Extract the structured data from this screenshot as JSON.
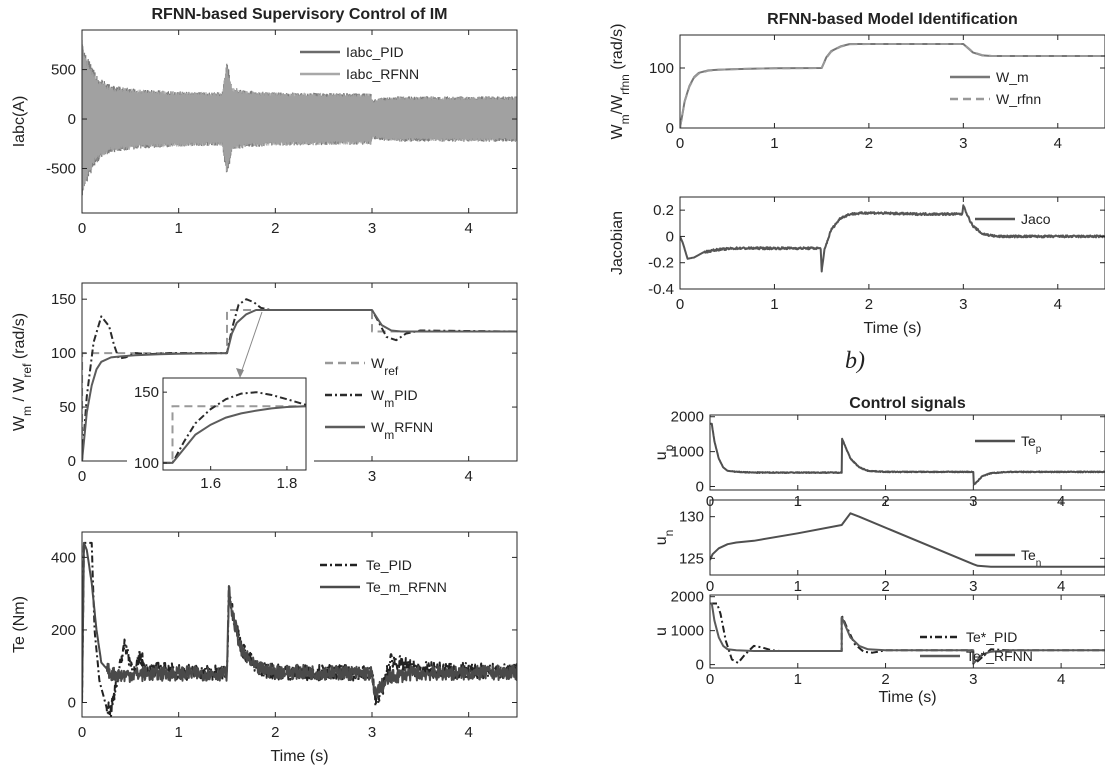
{
  "figure": {
    "left_label": "",
    "right_label": "b)"
  },
  "chart_data": [
    {
      "id": "iabc",
      "type": "line",
      "title": "RFNN-based Supervisory Control of IM",
      "xlabel": "",
      "ylabel": "Iabc(A)",
      "xlim": [
        0,
        4.5
      ],
      "ylim": [
        -950,
        900
      ],
      "xticks": [
        0,
        1,
        2,
        3,
        4
      ],
      "yticks": [
        -500,
        0,
        500
      ],
      "legend": "top-right",
      "series": [
        {
          "name": "Iabc_PID",
          "color": "#6b6b6b",
          "dash": "solid",
          "envelope": {
            "x": [
              0,
              0.05,
              0.15,
              0.3,
              0.6,
              1.0,
              1.45,
              1.5,
              1.55,
              1.7,
              2.0,
              2.9,
              2.99,
              3.0,
              3.1,
              3.3,
              4.5
            ],
            "amp": [
              800,
              650,
              450,
              340,
              300,
              280,
              270,
              600,
              330,
              290,
              270,
              260,
              260,
              200,
              220,
              230,
              230
            ]
          }
        },
        {
          "name": "Iabc_RFNN",
          "color": "#a8a8a8",
          "dash": "solid",
          "envelope": {
            "x": [
              0,
              0.05,
              0.15,
              0.3,
              0.6,
              1.0,
              1.45,
              1.5,
              1.55,
              1.7,
              2.0,
              2.9,
              2.99,
              3.0,
              3.1,
              3.3,
              4.5
            ],
            "amp": [
              780,
              620,
              420,
              330,
              300,
              280,
              270,
              560,
              320,
              285,
              270,
              260,
              260,
              190,
              215,
              225,
              225
            ]
          }
        }
      ]
    },
    {
      "id": "speed",
      "type": "line",
      "title": "",
      "xlabel": "",
      "ylabel": "W_m / W_ref (rad/s)",
      "xlim": [
        0,
        4.5
      ],
      "ylim": [
        0,
        165
      ],
      "xticks": [
        0,
        1,
        2,
        3,
        4
      ],
      "yticks": [
        0,
        50,
        100,
        150
      ],
      "legend": "right",
      "series": [
        {
          "name": "W_ref",
          "legend": {
            "main": "W",
            "sub": "ref"
          },
          "color": "#999999",
          "dash": "8,5",
          "x": [
            0,
            0.001,
            1.5,
            1.5,
            3.0,
            3.0,
            4.5
          ],
          "y": [
            0,
            100,
            100,
            140,
            140,
            120,
            120
          ]
        },
        {
          "name": "W_m PID",
          "legend": {
            "main": "W",
            "sub": "m",
            "rest": "PID"
          },
          "color": "#2b2b2b",
          "dash": "7,3,2,3",
          "x": [
            0,
            0.05,
            0.12,
            0.2,
            0.28,
            0.33,
            0.38,
            0.45,
            0.55,
            0.7,
            0.9,
            1.2,
            1.5,
            1.55,
            1.62,
            1.7,
            1.78,
            1.85,
            1.95,
            2.1,
            2.5,
            3.0,
            3.05,
            3.15,
            3.25,
            3.35,
            3.5,
            4.5
          ],
          "y": [
            0,
            60,
            110,
            134,
            125,
            108,
            95,
            96,
            100,
            99,
            100,
            100,
            100,
            122,
            145,
            150,
            147,
            142,
            140,
            140,
            140,
            140,
            132,
            115,
            112,
            118,
            121,
            120
          ]
        },
        {
          "name": "W_m RFNN",
          "legend": {
            "main": "W",
            "sub": "m",
            "rest": "RFNN"
          },
          "color": "#5c5c5c",
          "dash": "solid",
          "x": [
            0,
            0.05,
            0.1,
            0.15,
            0.2,
            0.3,
            0.4,
            0.55,
            0.8,
            1.0,
            1.5,
            1.55,
            1.6,
            1.7,
            1.8,
            2.0,
            3.0,
            3.05,
            3.1,
            3.2,
            3.3,
            4.5
          ],
          "y": [
            0,
            45,
            70,
            85,
            92,
            96,
            97,
            98,
            99,
            99.5,
            100,
            118,
            128,
            136,
            140,
            140,
            140,
            133,
            126,
            121,
            120,
            120
          ]
        }
      ],
      "inset": {
        "xlim": [
          1.475,
          1.85
        ],
        "ylim": [
          95,
          160
        ],
        "xticks": [
          1.6,
          1.8
        ],
        "yticks": [
          100,
          150
        ],
        "series": [
          {
            "name": "W_ref",
            "x": [
              1.475,
              1.5,
              1.5,
              1.85
            ],
            "y": [
              100,
              100,
              140,
              140
            ]
          },
          {
            "name": "W_m PID",
            "x": [
              1.475,
              1.5,
              1.53,
              1.56,
              1.6,
              1.64,
              1.68,
              1.72,
              1.76,
              1.8,
              1.85
            ],
            "y": [
              100,
              100,
              115,
              128,
              138,
              145,
              149,
              150,
              148,
              145,
              141
            ]
          },
          {
            "name": "W_m RFNN",
            "x": [
              1.475,
              1.5,
              1.53,
              1.56,
              1.6,
              1.64,
              1.68,
              1.72,
              1.76,
              1.8,
              1.85
            ],
            "y": [
              100,
              100,
              110,
              120,
              127,
              132,
              135,
              137,
              138.5,
              139.5,
              140
            ]
          }
        ]
      }
    },
    {
      "id": "torque",
      "type": "line",
      "title": "",
      "xlabel": "Time (s)",
      "ylabel": "Te (Nm)",
      "xlim": [
        0,
        4.5
      ],
      "ylim": [
        -40,
        470
      ],
      "xticks": [
        0,
        1,
        2,
        3,
        4
      ],
      "yticks": [
        0,
        200,
        400
      ],
      "legend": "top-right",
      "series": [
        {
          "name": "Te_PID",
          "color": "#222222",
          "dash": "7,3,2,3",
          "x": [
            0,
            0.02,
            0.05,
            0.1,
            0.13,
            0.18,
            0.25,
            0.3,
            0.35,
            0.4,
            0.45,
            0.5,
            0.55,
            0.6,
            0.65,
            0.7,
            0.8,
            1.0,
            1.5,
            1.52,
            1.55,
            1.65,
            1.8,
            2.0,
            3.0,
            3.03,
            3.1,
            3.2,
            3.3,
            3.5,
            4.5
          ],
          "y": [
            0,
            440,
            440,
            440,
            200,
            60,
            -10,
            -20,
            40,
            120,
            160,
            110,
            80,
            130,
            100,
            85,
            90,
            85,
            80,
            320,
            260,
            150,
            95,
            85,
            80,
            10,
            30,
            120,
            105,
            90,
            85
          ],
          "noise": 22
        },
        {
          "name": "Te_m_RFNN",
          "color": "#4a4a4a",
          "dash": "solid",
          "x": [
            0,
            0.02,
            0.05,
            0.1,
            0.15,
            0.2,
            0.3,
            0.4,
            0.6,
            1.0,
            1.5,
            1.52,
            1.55,
            1.65,
            1.8,
            2.0,
            3.0,
            3.02,
            3.08,
            3.2,
            3.4,
            4.5
          ],
          "y": [
            0,
            440,
            420,
            330,
            200,
            110,
            80,
            75,
            78,
            80,
            80,
            310,
            250,
            140,
            95,
            85,
            80,
            20,
            40,
            70,
            80,
            82
          ],
          "noise": 20
        }
      ]
    },
    {
      "id": "ident_speed",
      "type": "line",
      "title": "RFNN-based Model Identification",
      "xlabel": "",
      "ylabel": "W_m/W_rfnn (rad/s)",
      "xlim": [
        0,
        4.5
      ],
      "ylim": [
        0,
        155
      ],
      "xticks": [
        0,
        1,
        2,
        3,
        4
      ],
      "yticks": [
        0,
        100
      ],
      "legend": "right",
      "series": [
        {
          "name": "W_m",
          "color": "#777777",
          "dash": "solid",
          "x": [
            0,
            0.05,
            0.1,
            0.15,
            0.2,
            0.3,
            0.4,
            0.55,
            0.8,
            1.0,
            1.5,
            1.55,
            1.6,
            1.7,
            1.8,
            2.0,
            3.0,
            3.05,
            3.1,
            3.2,
            3.3,
            4.5
          ],
          "y": [
            0,
            45,
            70,
            85,
            92,
            96,
            97,
            98,
            99,
            99.5,
            100,
            118,
            128,
            136,
            140,
            140,
            140,
            133,
            126,
            121,
            120,
            120
          ]
        },
        {
          "name": "W_rfnn",
          "color": "#999999",
          "dash": "8,5",
          "x": [
            0,
            0.05,
            0.1,
            0.15,
            0.2,
            0.3,
            0.4,
            0.55,
            0.8,
            1.0,
            1.5,
            1.55,
            1.6,
            1.7,
            1.8,
            2.0,
            3.0,
            3.05,
            3.1,
            3.2,
            3.3,
            4.5
          ],
          "y": [
            0,
            44,
            69,
            84,
            91,
            95.5,
            97,
            98,
            99,
            99.5,
            100,
            117,
            127,
            135.5,
            139.5,
            140,
            140,
            133.5,
            126.5,
            121.5,
            120,
            120
          ]
        }
      ]
    },
    {
      "id": "jacobian",
      "type": "line",
      "title": "",
      "xlabel": "Time (s)",
      "ylabel": "Jacobian",
      "xlim": [
        0,
        4.5
      ],
      "ylim": [
        -0.4,
        0.3
      ],
      "xticks": [
        0,
        1,
        2,
        3,
        4
      ],
      "yticks": [
        -0.4,
        -0.2,
        0,
        0.2
      ],
      "legend": "top-right",
      "series": [
        {
          "name": "Jaco",
          "color": "#555555",
          "dash": "solid",
          "x": [
            0,
            0.03,
            0.08,
            0.15,
            0.25,
            0.4,
            0.6,
            1.0,
            1.49,
            1.5,
            1.53,
            1.6,
            1.7,
            1.8,
            2.0,
            2.5,
            2.99,
            3.0,
            3.05,
            3.1,
            3.2,
            3.35,
            3.6,
            4.0,
            4.5
          ],
          "y": [
            0,
            -0.05,
            -0.17,
            -0.16,
            -0.12,
            -0.1,
            -0.09,
            -0.09,
            -0.09,
            -0.27,
            -0.1,
            0.05,
            0.14,
            0.17,
            0.18,
            0.17,
            0.17,
            0.24,
            0.15,
            0.08,
            0.02,
            0.0,
            0.0,
            0.0,
            0.0
          ],
          "noise": 0.008
        }
      ]
    },
    {
      "id": "up",
      "type": "line",
      "title": "Control signals",
      "xlabel": "",
      "ylabel": "u_p",
      "xlim": [
        0,
        4.5
      ],
      "ylim": [
        -100,
        2050
      ],
      "xticks": [
        0,
        1,
        2,
        3,
        4
      ],
      "yticks": [
        0,
        1000,
        2000
      ],
      "legend": "top-right",
      "series": [
        {
          "name": "Te_p",
          "legend": {
            "main": "Te",
            "sub": "p"
          },
          "color": "#4f4f4f",
          "dash": "solid",
          "x": [
            0,
            0.02,
            0.05,
            0.1,
            0.15,
            0.2,
            0.3,
            0.5,
            1.0,
            1.5,
            1.5,
            1.55,
            1.6,
            1.7,
            1.8,
            2.0,
            3.0,
            3.0,
            3.05,
            3.1,
            3.2,
            3.4,
            3.8,
            4.5
          ],
          "y": [
            1800,
            1800,
            1300,
            800,
            550,
            450,
            420,
            400,
            400,
            400,
            1400,
            1100,
            800,
            550,
            450,
            420,
            420,
            40,
            150,
            300,
            380,
            420,
            420,
            420
          ],
          "noise": 12
        }
      ]
    },
    {
      "id": "un",
      "type": "line",
      "title": "",
      "xlabel": "",
      "ylabel": "u_n",
      "xlim": [
        0,
        4.5
      ],
      "ylim": [
        123,
        132
      ],
      "xticks": [
        0,
        1,
        2,
        3,
        4
      ],
      "yticks": [
        125,
        130
      ],
      "legend": "right",
      "series": [
        {
          "name": "Te_n",
          "legend": {
            "main": "Te",
            "sub": "n"
          },
          "color": "#4f4f4f",
          "dash": "solid",
          "x": [
            0,
            0.03,
            0.1,
            0.2,
            0.3,
            0.5,
            1.0,
            1.5,
            1.6,
            1.7,
            3.0,
            3.05,
            3.2,
            4.5
          ],
          "y": [
            124.8,
            125.5,
            126.2,
            126.7,
            126.9,
            127.1,
            128.0,
            129.0,
            130.4,
            130.0,
            124.3,
            124.1,
            124.0,
            124.0
          ]
        }
      ]
    },
    {
      "id": "u",
      "type": "line",
      "title": "",
      "xlabel": "Time (s)",
      "ylabel": "u",
      "xlim": [
        0,
        4.5
      ],
      "ylim": [
        -100,
        2050
      ],
      "xticks": [
        0,
        1,
        2,
        3,
        4
      ],
      "yticks": [
        0,
        1000,
        2000
      ],
      "legend": "right",
      "series": [
        {
          "name": "Te*_PID",
          "color": "#222222",
          "dash": "7,3,2,3",
          "x": [
            0,
            0.08,
            0.12,
            0.18,
            0.25,
            0.32,
            0.4,
            0.5,
            0.6,
            0.7,
            0.8,
            1.0,
            1.5,
            1.5,
            1.55,
            1.65,
            1.75,
            1.85,
            2.0,
            3.0,
            3.0,
            3.05,
            3.2,
            3.4,
            4.5
          ],
          "y": [
            1800,
            1800,
            1500,
            700,
            150,
            50,
            300,
            550,
            500,
            420,
            400,
            400,
            400,
            1450,
            1150,
            600,
            380,
            350,
            420,
            420,
            30,
            100,
            450,
            420,
            420
          ]
        },
        {
          "name": "Te*_RFNN",
          "color": "#5a5a5a",
          "dash": "solid",
          "x": [
            0,
            0.02,
            0.05,
            0.1,
            0.15,
            0.2,
            0.3,
            0.5,
            1.0,
            1.5,
            1.5,
            1.55,
            1.6,
            1.7,
            1.8,
            2.0,
            3.0,
            3.0,
            3.05,
            3.1,
            3.2,
            3.4,
            4.5
          ],
          "y": [
            1800,
            1800,
            1300,
            800,
            550,
            450,
            420,
            400,
            400,
            400,
            1400,
            1100,
            800,
            550,
            450,
            420,
            420,
            40,
            150,
            300,
            380,
            420,
            420
          ]
        }
      ]
    }
  ]
}
